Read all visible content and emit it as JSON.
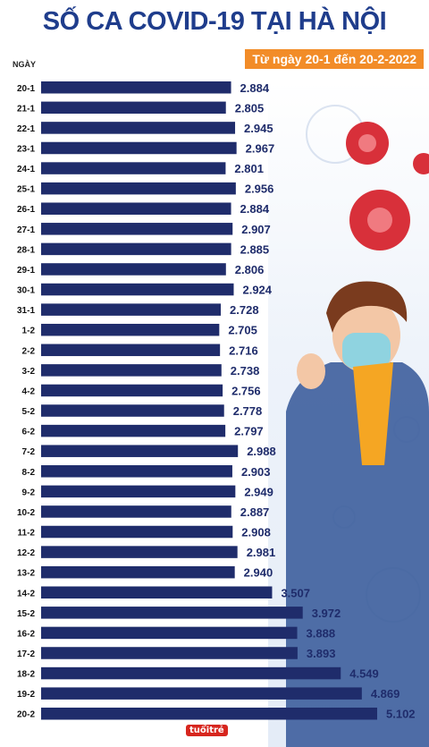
{
  "header": {
    "title": "SỐ CA COVID-19 TẠI HÀ NỘI",
    "subtitle": "Từ ngày 20-1 đến 20-2-2022"
  },
  "colors": {
    "bar": "#1f2c6b",
    "title": "#1f3d8c",
    "accent": "#f28c28"
  },
  "logo": "tuổitrẻ",
  "chart_data": {
    "type": "bar",
    "orientation": "horizontal",
    "xlabel": "",
    "ylabel": "NGÀY",
    "categories": [
      "20-1",
      "21-1",
      "22-1",
      "23-1",
      "24-1",
      "25-1",
      "26-1",
      "27-1",
      "28-1",
      "29-1",
      "30-1",
      "31-1",
      "1-2",
      "2-2",
      "3-2",
      "4-2",
      "5-2",
      "6-2",
      "7-2",
      "8-2",
      "9-2",
      "10-2",
      "11-2",
      "12-2",
      "13-2",
      "14-2",
      "15-2",
      "16-2",
      "17-2",
      "18-2",
      "19-2",
      "20-2"
    ],
    "values": [
      2884,
      2805,
      2945,
      2967,
      2801,
      2956,
      2884,
      2907,
      2885,
      2806,
      2924,
      2728,
      2705,
      2716,
      2738,
      2756,
      2778,
      2797,
      2988,
      2903,
      2949,
      2887,
      2908,
      2981,
      2940,
      3507,
      3972,
      3888,
      3893,
      4549,
      4869,
      5102
    ],
    "value_labels": [
      "2.884",
      "2.805",
      "2.945",
      "2.967",
      "2.801",
      "2.956",
      "2.884",
      "2.907",
      "2.885",
      "2.806",
      "2.924",
      "2.728",
      "2.705",
      "2.716",
      "2.738",
      "2.756",
      "2.778",
      "2.797",
      "2.988",
      "2.903",
      "2.949",
      "2.887",
      "2.908",
      "2.981",
      "2.940",
      "3.507",
      "3.972",
      "3.888",
      "3.893",
      "4.549",
      "4.869",
      "5.102"
    ]
  }
}
